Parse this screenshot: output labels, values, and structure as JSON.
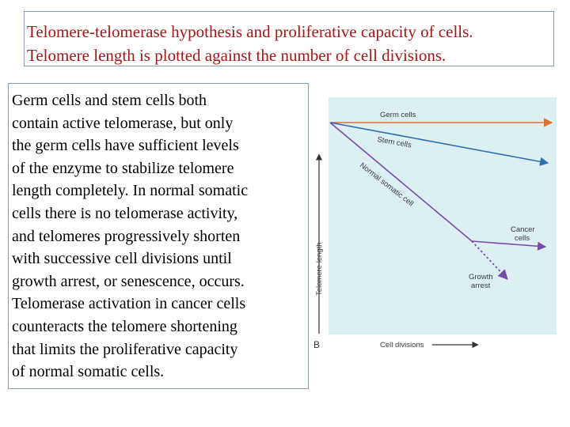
{
  "slide": {
    "title_lines": [
      "Telomere-telomerase hypothesis and proliferative capacity of cells.",
      "Telomere length is plotted against the number of cell divisions."
    ],
    "body_lines": [
      "Germ cells and stem cells both",
      "contain active telomerase, but only",
      "the germ cells have sufficient levels",
      "of the enzyme to stabilize telomere",
      "length completely. In normal somatic",
      "cells there is no telomerase activity,",
      "and telomeres progressively shorten",
      "with successive cell divisions until",
      "growth arrest, or senescence, occurs.",
      "Telomerase activation in cancer cells",
      "counteracts the telomere shortening",
      "that limits the proliferative capacity",
      "of normal somatic cells."
    ]
  },
  "diagram": {
    "panel_letter": "B",
    "y_axis_label": "Telomere length",
    "x_axis_label": "Cell divisions",
    "lines": {
      "germ": {
        "label": "Germ cells",
        "color": "#e0702a"
      },
      "stem": {
        "label": "Stem cells",
        "color": "#2f6fb0"
      },
      "normal": {
        "label": "Normal somatic cell",
        "color": "#7a4aa8"
      },
      "cancer": {
        "label_line1": "Cancer",
        "label_line2": "cells"
      },
      "growth": {
        "label_line1": "Growth",
        "label_line2": "arrest"
      }
    },
    "background_color": "#dceff2"
  }
}
